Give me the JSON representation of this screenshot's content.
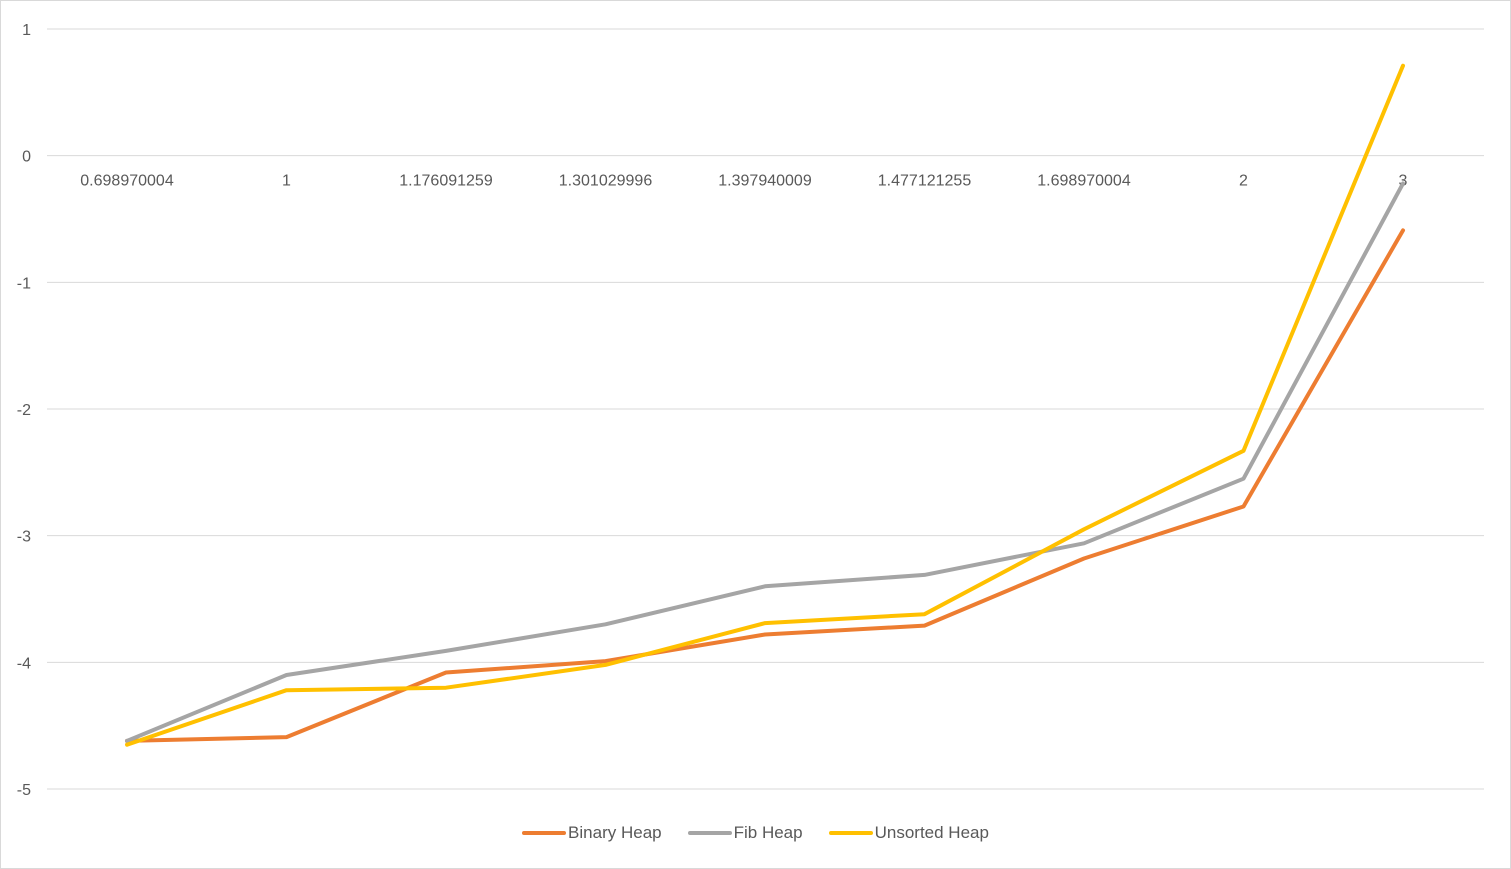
{
  "chart_data": {
    "type": "line",
    "title": "",
    "xlabel": "",
    "ylabel": "",
    "categories": [
      "0.698970004",
      "1",
      "1.176091259",
      "1.301029996",
      "1.397940009",
      "1.477121255",
      "1.698970004",
      "2",
      "3"
    ],
    "ylim": [
      -5,
      1
    ],
    "yticks": [
      "1",
      "0",
      "-1",
      "-2",
      "-3",
      "-4",
      "-5"
    ],
    "grid": true,
    "legend_position": "bottom",
    "series": [
      {
        "name": "Binary Heap",
        "color": "#ED7D31",
        "values": [
          -4.62,
          -4.59,
          -4.08,
          -3.99,
          -3.78,
          -3.71,
          -3.18,
          -2.77,
          -0.59
        ]
      },
      {
        "name": "Fib Heap",
        "color": "#A5A5A5",
        "values": [
          -4.62,
          -4.1,
          -3.91,
          -3.7,
          -3.4,
          -3.31,
          -3.06,
          -2.55,
          -0.22
        ]
      },
      {
        "name": "Unsorted Heap",
        "color": "#FFC000",
        "values": [
          -4.65,
          -4.22,
          -4.2,
          -4.02,
          -3.69,
          -3.62,
          -2.95,
          -2.33,
          0.71
        ]
      }
    ]
  }
}
